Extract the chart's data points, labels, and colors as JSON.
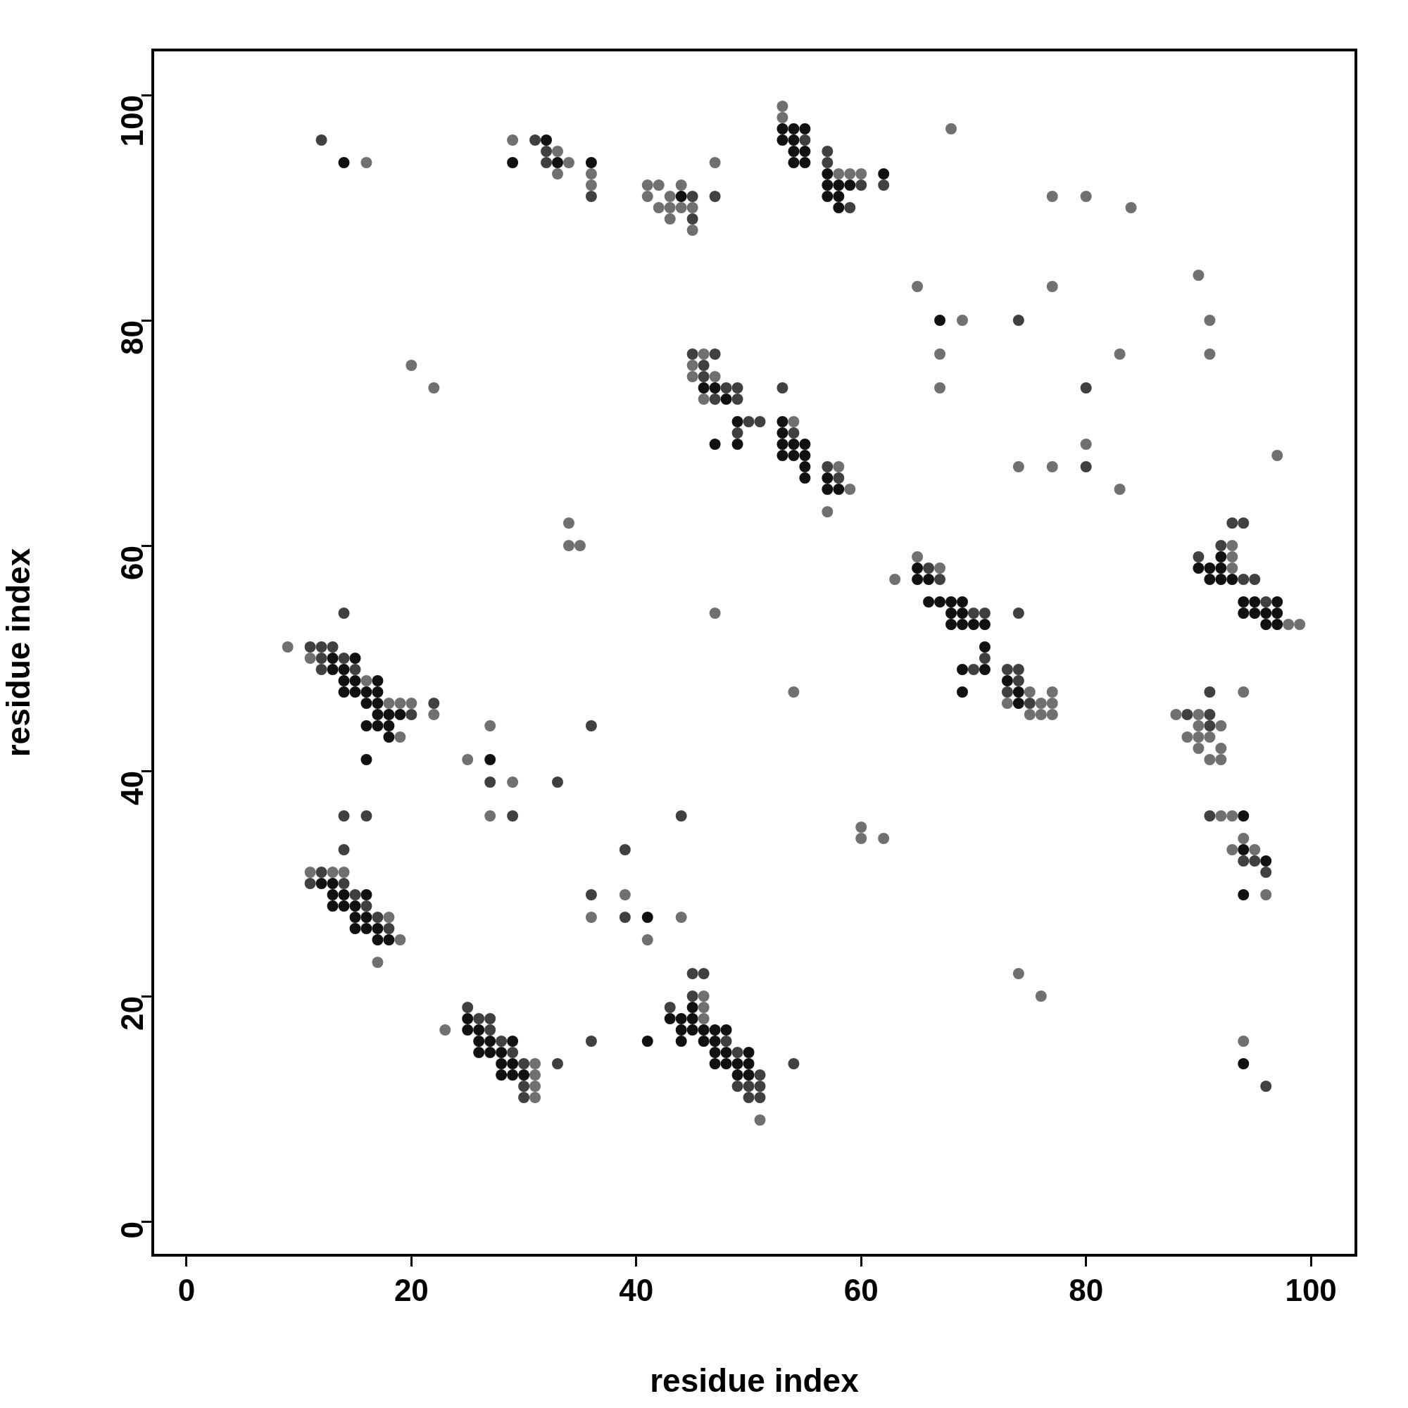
{
  "chart_data": {
    "type": "scatter",
    "xlabel": "residue index",
    "ylabel": "residue index",
    "xlim": [
      -3,
      104
    ],
    "ylim": [
      -3,
      104
    ],
    "xticks": [
      0,
      20,
      40,
      60,
      80,
      100
    ],
    "yticks": [
      0,
      20,
      40,
      60,
      80,
      100
    ],
    "marker": "circle",
    "series": [
      {
        "color": "#111111",
        "x": [
          14,
          29,
          32,
          33,
          36,
          44,
          53,
          54,
          55,
          53,
          54,
          54,
          55,
          54,
          55,
          57,
          57,
          58,
          59,
          57,
          58,
          58,
          62,
          67,
          46,
          47,
          48,
          49,
          47,
          49,
          53,
          53,
          53,
          54,
          55,
          53,
          54,
          55,
          55,
          55,
          57,
          57,
          58,
          65,
          65,
          66,
          66,
          67,
          68,
          69,
          68,
          69,
          68,
          69,
          70,
          71,
          71,
          69,
          71,
          69,
          73,
          74,
          74,
          92,
          90,
          91,
          92,
          91,
          92,
          93,
          94,
          95,
          97,
          94,
          95,
          96,
          97,
          96,
          97,
          94,
          94,
          96,
          94,
          94,
          13,
          15,
          13,
          14,
          14,
          15,
          17,
          14,
          15,
          16,
          17,
          16,
          17,
          17,
          18,
          19,
          16,
          17,
          18,
          18,
          16,
          27,
          41,
          12,
          13,
          13,
          14,
          16,
          13,
          14,
          15,
          15,
          16,
          15,
          16,
          17,
          17,
          18,
          25,
          25,
          26,
          26,
          27,
          29,
          26,
          27,
          28,
          28,
          29,
          28,
          29,
          30,
          41,
          45,
          43,
          44,
          45,
          44,
          45,
          46,
          47,
          48,
          44,
          46,
          47,
          47,
          48,
          50,
          47,
          48,
          49,
          50,
          49,
          50
        ],
        "values": [
          94,
          94,
          96,
          94,
          94,
          91,
          97,
          97,
          97,
          96,
          96,
          95,
          95,
          94,
          94,
          93,
          92,
          92,
          92,
          91,
          91,
          90,
          93,
          80,
          74,
          74,
          73,
          71,
          69,
          69,
          71,
          70,
          69,
          69,
          69,
          68,
          68,
          68,
          67,
          66,
          66,
          65,
          65,
          58,
          57,
          57,
          55,
          55,
          55,
          55,
          54,
          54,
          53,
          53,
          53,
          53,
          51,
          49,
          49,
          47,
          48,
          47,
          46,
          59,
          58,
          58,
          58,
          57,
          57,
          57,
          55,
          55,
          55,
          54,
          54,
          54,
          54,
          53,
          53,
          36,
          33,
          32,
          29,
          14,
          50,
          50,
          49,
          49,
          48,
          48,
          48,
          47,
          47,
          47,
          47,
          46,
          46,
          45,
          45,
          45,
          44,
          44,
          44,
          43,
          41,
          41,
          27,
          30,
          30,
          29,
          29,
          29,
          28,
          28,
          28,
          27,
          27,
          26,
          26,
          26,
          25,
          25,
          18,
          17,
          17,
          16,
          16,
          16,
          15,
          15,
          15,
          14,
          14,
          13,
          13,
          13,
          16,
          19,
          18,
          18,
          18,
          17,
          17,
          17,
          17,
          17,
          16,
          16,
          16,
          15,
          15,
          15,
          14,
          14,
          14,
          14,
          13,
          13
        ]
      },
      {
        "color": "#404040",
        "x": [
          12,
          31,
          32,
          32,
          36,
          45,
          45,
          47,
          55,
          57,
          57,
          60,
          59,
          62,
          74,
          80,
          80,
          45,
          47,
          46,
          46,
          48,
          49,
          47,
          49,
          50,
          51,
          49,
          53,
          54,
          57,
          58,
          66,
          67,
          70,
          71,
          71,
          70,
          74,
          73,
          74,
          74,
          73,
          75,
          93,
          94,
          92,
          90,
          94,
          95,
          96,
          89,
          91,
          91,
          91,
          91,
          94,
          95,
          96,
          96,
          11,
          12,
          13,
          12,
          14,
          12,
          15,
          22,
          20,
          14,
          27,
          33,
          29,
          36,
          14,
          16,
          14,
          44,
          39,
          36,
          39,
          12,
          11,
          14,
          15,
          16,
          17,
          18,
          25,
          26,
          27,
          27,
          28,
          29,
          30,
          30,
          30,
          33,
          36,
          45,
          46,
          45,
          43,
          48,
          49,
          51,
          49,
          50,
          51,
          50,
          51,
          54
        ],
        "values": [
          96,
          96,
          95,
          94,
          91,
          91,
          89,
          91,
          96,
          95,
          94,
          92,
          90,
          92,
          80,
          74,
          67,
          77,
          77,
          76,
          75,
          74,
          74,
          73,
          73,
          71,
          71,
          70,
          74,
          70,
          67,
          66,
          58,
          57,
          54,
          54,
          50,
          49,
          54,
          49,
          49,
          48,
          47,
          46,
          62,
          62,
          60,
          59,
          57,
          57,
          55,
          45,
          45,
          47,
          44,
          36,
          32,
          32,
          31,
          12,
          51,
          51,
          51,
          50,
          50,
          49,
          49,
          46,
          45,
          54,
          39,
          39,
          36,
          44,
          36,
          36,
          33,
          36,
          33,
          29,
          27,
          31,
          30,
          30,
          29,
          28,
          27,
          26,
          19,
          18,
          18,
          17,
          16,
          15,
          14,
          12,
          11,
          14,
          16,
          22,
          22,
          20,
          19,
          16,
          15,
          13,
          12,
          12,
          12,
          11,
          11,
          14
        ]
      },
      {
        "color": "#707070",
        "x": [
          16,
          29,
          33,
          34,
          33,
          36,
          36,
          41,
          42,
          41,
          43,
          44,
          42,
          43,
          44,
          45,
          43,
          45,
          47,
          53,
          53,
          58,
          59,
          60,
          68,
          77,
          80,
          84,
          65,
          77,
          90,
          69,
          67,
          83,
          91,
          91,
          67,
          80,
          74,
          77,
          83,
          97,
          46,
          45,
          45,
          47,
          46,
          54,
          58,
          59,
          57,
          34,
          34,
          35,
          20,
          22,
          63,
          65,
          67,
          75,
          77,
          73,
          76,
          77,
          75,
          76,
          77,
          54,
          47,
          93,
          93,
          93,
          98,
          99,
          88,
          90,
          94,
          90,
          92,
          89,
          90,
          91,
          90,
          92,
          91,
          92,
          92,
          93,
          94,
          93,
          95,
          96,
          94,
          9,
          11,
          16,
          18,
          19,
          20,
          22,
          19,
          25,
          27,
          29,
          27,
          39,
          36,
          44,
          41,
          60,
          60,
          62,
          11,
          13,
          14,
          18,
          19,
          17,
          23,
          31,
          31,
          31,
          31,
          46,
          46,
          46,
          51,
          74,
          76
        ],
        "values": [
          94,
          96,
          95,
          94,
          93,
          93,
          92,
          92,
          92,
          91,
          91,
          92,
          90,
          90,
          90,
          90,
          89,
          88,
          94,
          99,
          98,
          93,
          93,
          93,
          97,
          91,
          91,
          90,
          83,
          83,
          84,
          80,
          77,
          77,
          80,
          77,
          74,
          69,
          67,
          67,
          65,
          68,
          77,
          76,
          75,
          75,
          73,
          71,
          67,
          65,
          63,
          62,
          60,
          60,
          76,
          74,
          57,
          59,
          58,
          47,
          47,
          46,
          46,
          46,
          45,
          45,
          45,
          47,
          54,
          60,
          59,
          58,
          53,
          53,
          45,
          45,
          47,
          44,
          44,
          43,
          43,
          43,
          42,
          42,
          41,
          41,
          36,
          36,
          34,
          33,
          33,
          29,
          16,
          51,
          50,
          48,
          46,
          46,
          46,
          45,
          43,
          41,
          44,
          39,
          36,
          29,
          27,
          27,
          25,
          35,
          34,
          34,
          31,
          31,
          31,
          27,
          25,
          23,
          17,
          14,
          13,
          12,
          11,
          20,
          19,
          18,
          9,
          22,
          20
        ]
      }
    ]
  }
}
